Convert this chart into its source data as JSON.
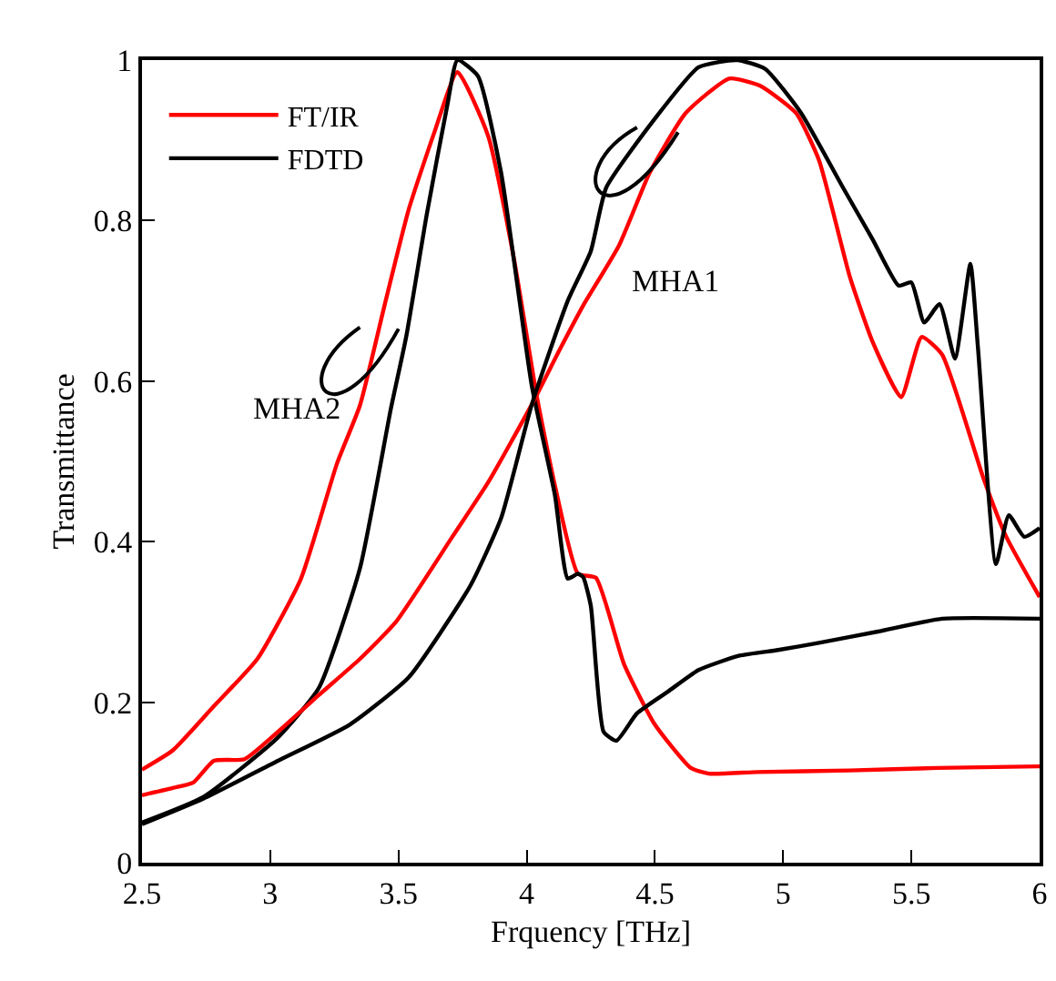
{
  "chart_data": {
    "type": "line",
    "xlabel": "Frquency [THz]",
    "ylabel": "Transmittance",
    "xlim": [
      2.5,
      6
    ],
    "xticks": [
      2.5,
      3,
      3.5,
      4,
      4.5,
      5,
      5.5,
      6
    ],
    "ylim": [
      0,
      1
    ],
    "yticks": [
      0,
      0.2,
      0.4,
      0.6,
      0.8,
      1
    ],
    "grid": false,
    "legend": "top left",
    "marker": "none",
    "line_style": "solid",
    "annotations": [
      "MHA2",
      "MHA1"
    ],
    "series": [
      {
        "name": "FT/IR",
        "color": "#ff0000",
        "x": [
          2.5,
          2.62,
          2.78,
          2.95,
          3.12,
          3.26,
          3.35,
          3.45,
          3.54,
          3.64,
          3.73,
          3.85,
          3.95,
          4.04,
          4.11,
          4.2,
          4.27,
          4.38,
          4.5,
          4.64,
          4.71,
          4.9,
          5.26,
          5.6,
          6
        ],
        "values": [
          0.116,
          0.14,
          0.195,
          0.254,
          0.354,
          0.497,
          0.57,
          0.7,
          0.814,
          0.91,
          0.985,
          0.905,
          0.753,
          0.58,
          0.47,
          0.36,
          0.355,
          0.247,
          0.172,
          0.118,
          0.111,
          0.113,
          0.115,
          0.118,
          0.12
        ]
      },
      {
        "name": "FDTD",
        "color": "#000000",
        "x": [
          2.5,
          2.74,
          3.03,
          3.19,
          3.35,
          3.47,
          3.53,
          3.61,
          3.69,
          3.73,
          3.81,
          3.9,
          4.02,
          4.11,
          4.16,
          4.2,
          4.22,
          4.25,
          4.3,
          4.35,
          4.43,
          4.55,
          4.67,
          4.83,
          4.98,
          5.14,
          5.37,
          5.62,
          6
        ],
        "values": [
          0.05,
          0.082,
          0.156,
          0.218,
          0.367,
          0.565,
          0.655,
          0.807,
          0.943,
          1,
          0.98,
          0.86,
          0.594,
          0.458,
          0.354,
          0.36,
          0.356,
          0.32,
          0.163,
          0.152,
          0.186,
          0.213,
          0.24,
          0.258,
          0.265,
          0.274,
          0.288,
          0.304,
          0.304
        ]
      },
      {
        "color": "#ff0000",
        "x": [
          2.5,
          2.62,
          2.7,
          2.78,
          2.9,
          3.03,
          3.19,
          3.35,
          3.49,
          3.71,
          3.85,
          4.02,
          4.13,
          4.22,
          4.36,
          4.48,
          4.62,
          4.79,
          4.91,
          5.05,
          5.14,
          5.26,
          5.35,
          5.46,
          5.54,
          5.62,
          5.78,
          5.87,
          6
        ],
        "values": [
          0.084,
          0.093,
          0.1,
          0.127,
          0.129,
          0.163,
          0.209,
          0.254,
          0.3,
          0.406,
          0.474,
          0.571,
          0.64,
          0.694,
          0.769,
          0.86,
          0.934,
          0.977,
          0.968,
          0.934,
          0.875,
          0.73,
          0.648,
          0.58,
          0.655,
          0.633,
          0.48,
          0.406,
          0.331
        ]
      },
      {
        "color": "#000000",
        "x": [
          2.5,
          2.74,
          3.03,
          3.31,
          3.54,
          3.78,
          3.9,
          4.02,
          4.16,
          4.25,
          4.31,
          4.5,
          4.67,
          4.82,
          4.93,
          5.07,
          5.23,
          5.35,
          5.45,
          5.5,
          5.55,
          5.61,
          5.67,
          5.73,
          5.76,
          5.83,
          5.88,
          5.94,
          6
        ],
        "values": [
          0.048,
          0.08,
          0.127,
          0.172,
          0.231,
          0.345,
          0.429,
          0.571,
          0.7,
          0.762,
          0.841,
          0.927,
          0.991,
          1,
          0.989,
          0.934,
          0.843,
          0.776,
          0.719,
          0.723,
          0.673,
          0.696,
          0.628,
          0.746,
          0.64,
          0.372,
          0.433,
          0.406,
          0.417
        ]
      }
    ]
  }
}
